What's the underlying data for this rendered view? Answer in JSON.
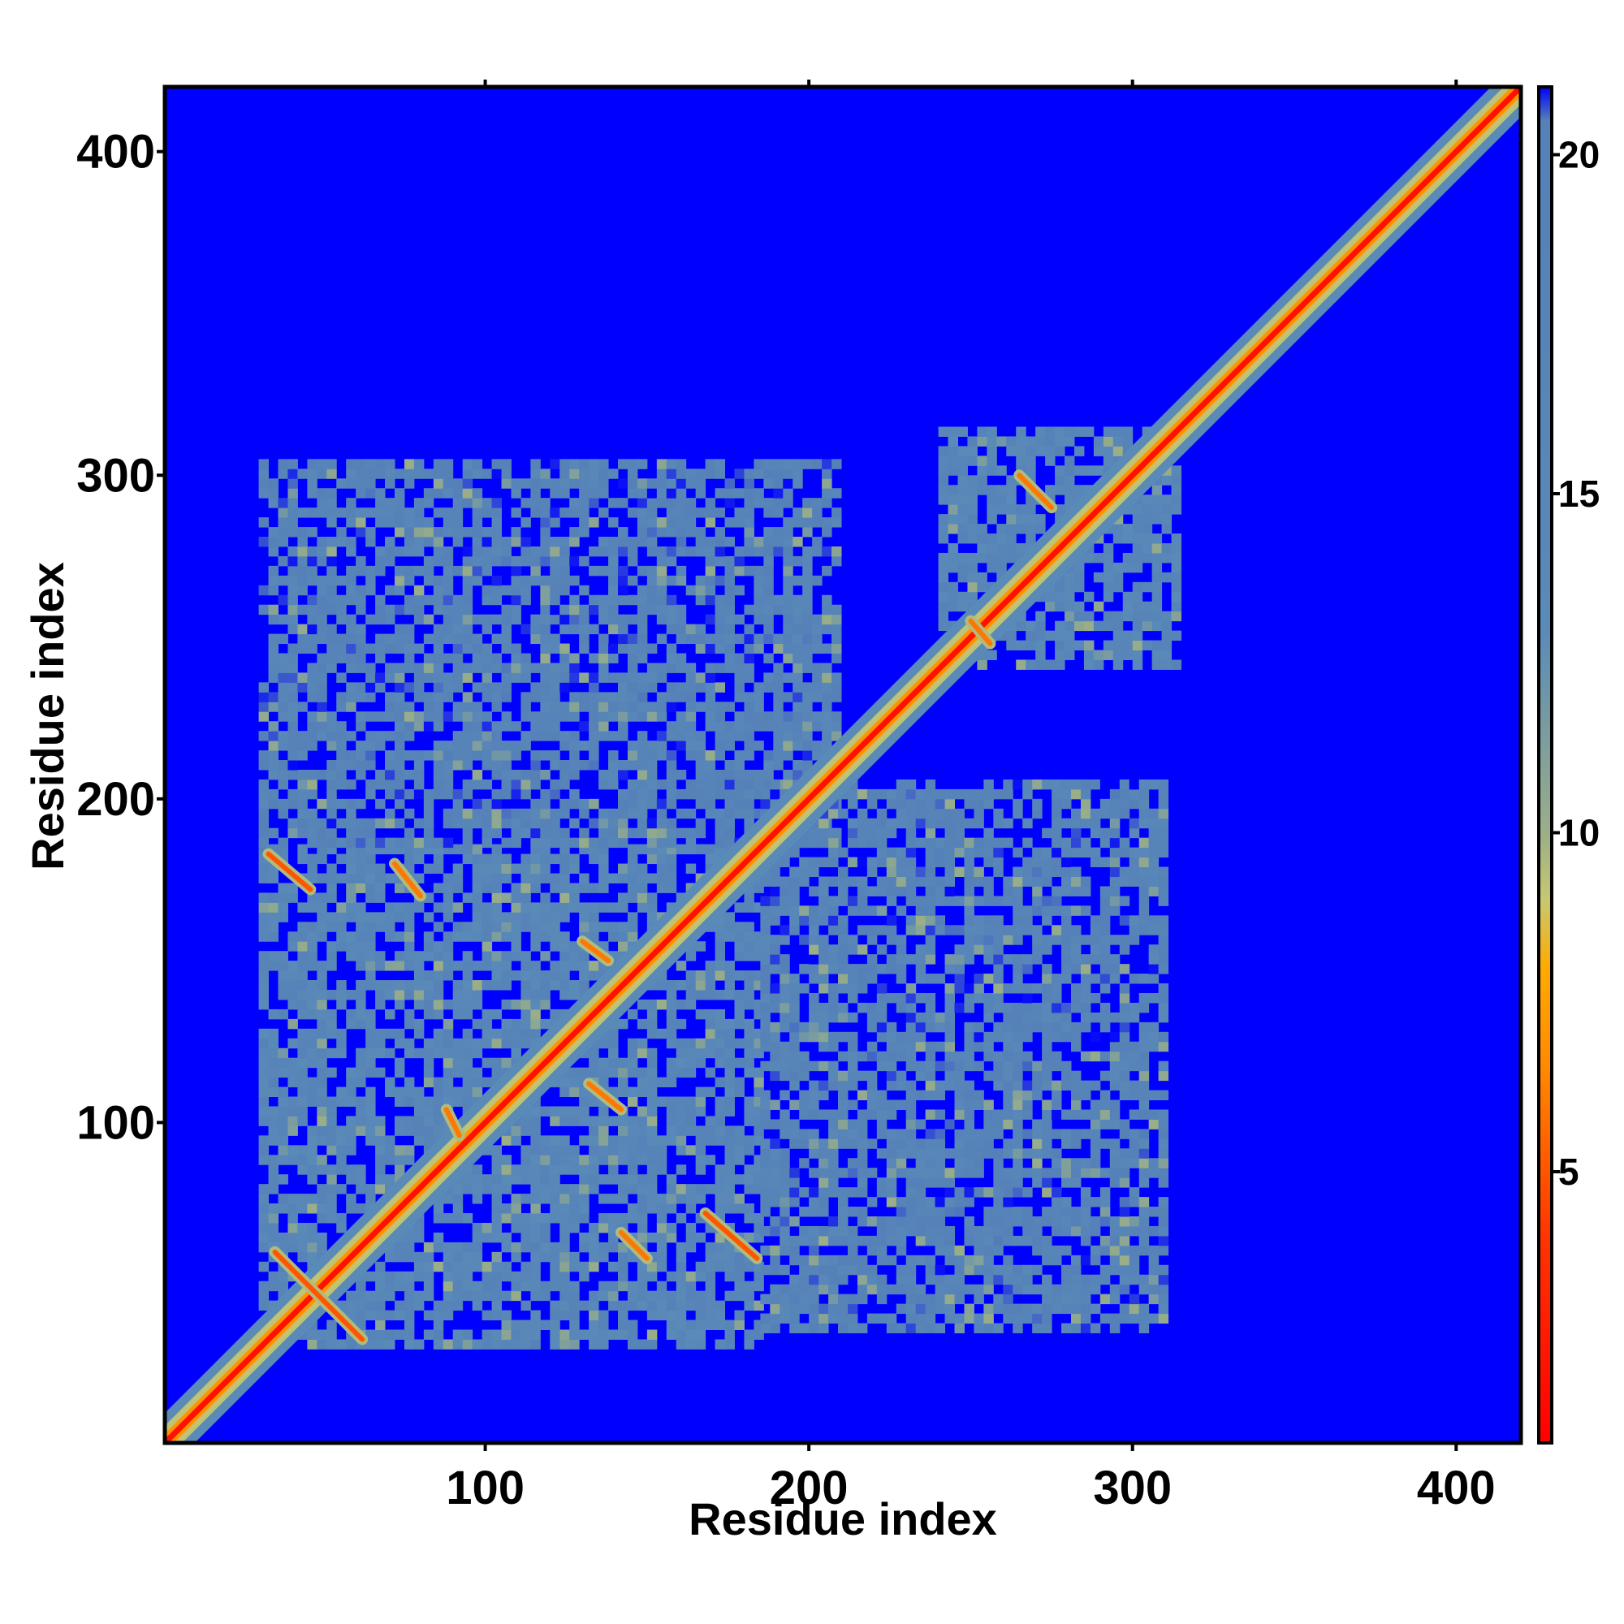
{
  "chart_data": {
    "type": "heatmap",
    "title": "",
    "xlabel": "Residue index",
    "ylabel": "Residue index",
    "xlim": [
      1,
      420
    ],
    "ylim": [
      1,
      420
    ],
    "x_ticks": [
      100,
      200,
      300,
      400
    ],
    "y_ticks": [
      100,
      200,
      300,
      400
    ],
    "x_tick_labels": [
      "100",
      "200",
      "300",
      "400"
    ],
    "y_tick_labels": [
      "100",
      "200",
      "300",
      "400"
    ],
    "colorbar": {
      "range": [
        1,
        21
      ],
      "ticks": [
        5,
        10,
        15,
        20
      ],
      "tick_labels": [
        "5",
        "10",
        "15",
        "20"
      ],
      "stops": [
        {
          "value": 1,
          "color": "#ff0000"
        },
        {
          "value": 4,
          "color": "#ff3300"
        },
        {
          "value": 6.5,
          "color": "#ff8800"
        },
        {
          "value": 8,
          "color": "#ffaa00"
        },
        {
          "value": 9,
          "color": "#c8c870"
        },
        {
          "value": 10,
          "color": "#9aae88"
        },
        {
          "value": 13,
          "color": "#5a8ab8"
        },
        {
          "value": 20.5,
          "color": "#5580b8"
        },
        {
          "value": 21,
          "color": "#0000ff"
        }
      ]
    },
    "background_value": 21,
    "colors": {
      "background": "#0000ff",
      "contact": "#ff0000",
      "near": "#ffaa00",
      "mid": "#c8c870",
      "far": "#5a8ab8"
    },
    "diagonal": {
      "from": 1,
      "to": 420,
      "value": 2
    },
    "regions": [
      {
        "name": "domain-1",
        "x": [
          30,
          185
        ],
        "y": [
          30,
          185
        ],
        "value": 16
      },
      {
        "name": "domain-2",
        "x": [
          240,
          315
        ],
        "y": [
          240,
          315
        ],
        "value": 16
      },
      {
        "name": "upper-band-1-2",
        "x": [
          30,
          210
        ],
        "y": [
          185,
          305
        ],
        "value": 18
      },
      {
        "name": "lower-band-2-1",
        "x": [
          185,
          310
        ],
        "y": [
          35,
          205
        ],
        "value": 18
      }
    ],
    "strips": [
      {
        "name": "beta-pair-1",
        "from": [
          35,
          60
        ],
        "to": [
          62,
          33
        ],
        "value": 5
      },
      {
        "name": "beta-pair-2",
        "from": [
          33,
          183
        ],
        "to": [
          46,
          172
        ],
        "value": 5
      },
      {
        "name": "beta-pair-3",
        "from": [
          168,
          72
        ],
        "to": [
          184,
          58
        ],
        "value": 5
      },
      {
        "name": "beta-pair-4",
        "from": [
          72,
          180
        ],
        "to": [
          80,
          170
        ],
        "value": 6
      },
      {
        "name": "beta-pair-5",
        "from": [
          88,
          104
        ],
        "to": [
          92,
          96
        ],
        "value": 6
      },
      {
        "name": "beta-pair-6",
        "from": [
          132,
          112
        ],
        "to": [
          142,
          104
        ],
        "value": 6
      },
      {
        "name": "beta-pair-7",
        "from": [
          130,
          156
        ],
        "to": [
          138,
          150
        ],
        "value": 6
      },
      {
        "name": "beta-pair-8",
        "from": [
          142,
          66
        ],
        "to": [
          150,
          58
        ],
        "value": 6
      },
      {
        "name": "beta-pair-9",
        "from": [
          265,
          300
        ],
        "to": [
          275,
          290
        ],
        "value": 6
      },
      {
        "name": "beta-pair-10",
        "from": [
          250,
          255
        ],
        "to": [
          256,
          248
        ],
        "value": 6
      }
    ]
  }
}
